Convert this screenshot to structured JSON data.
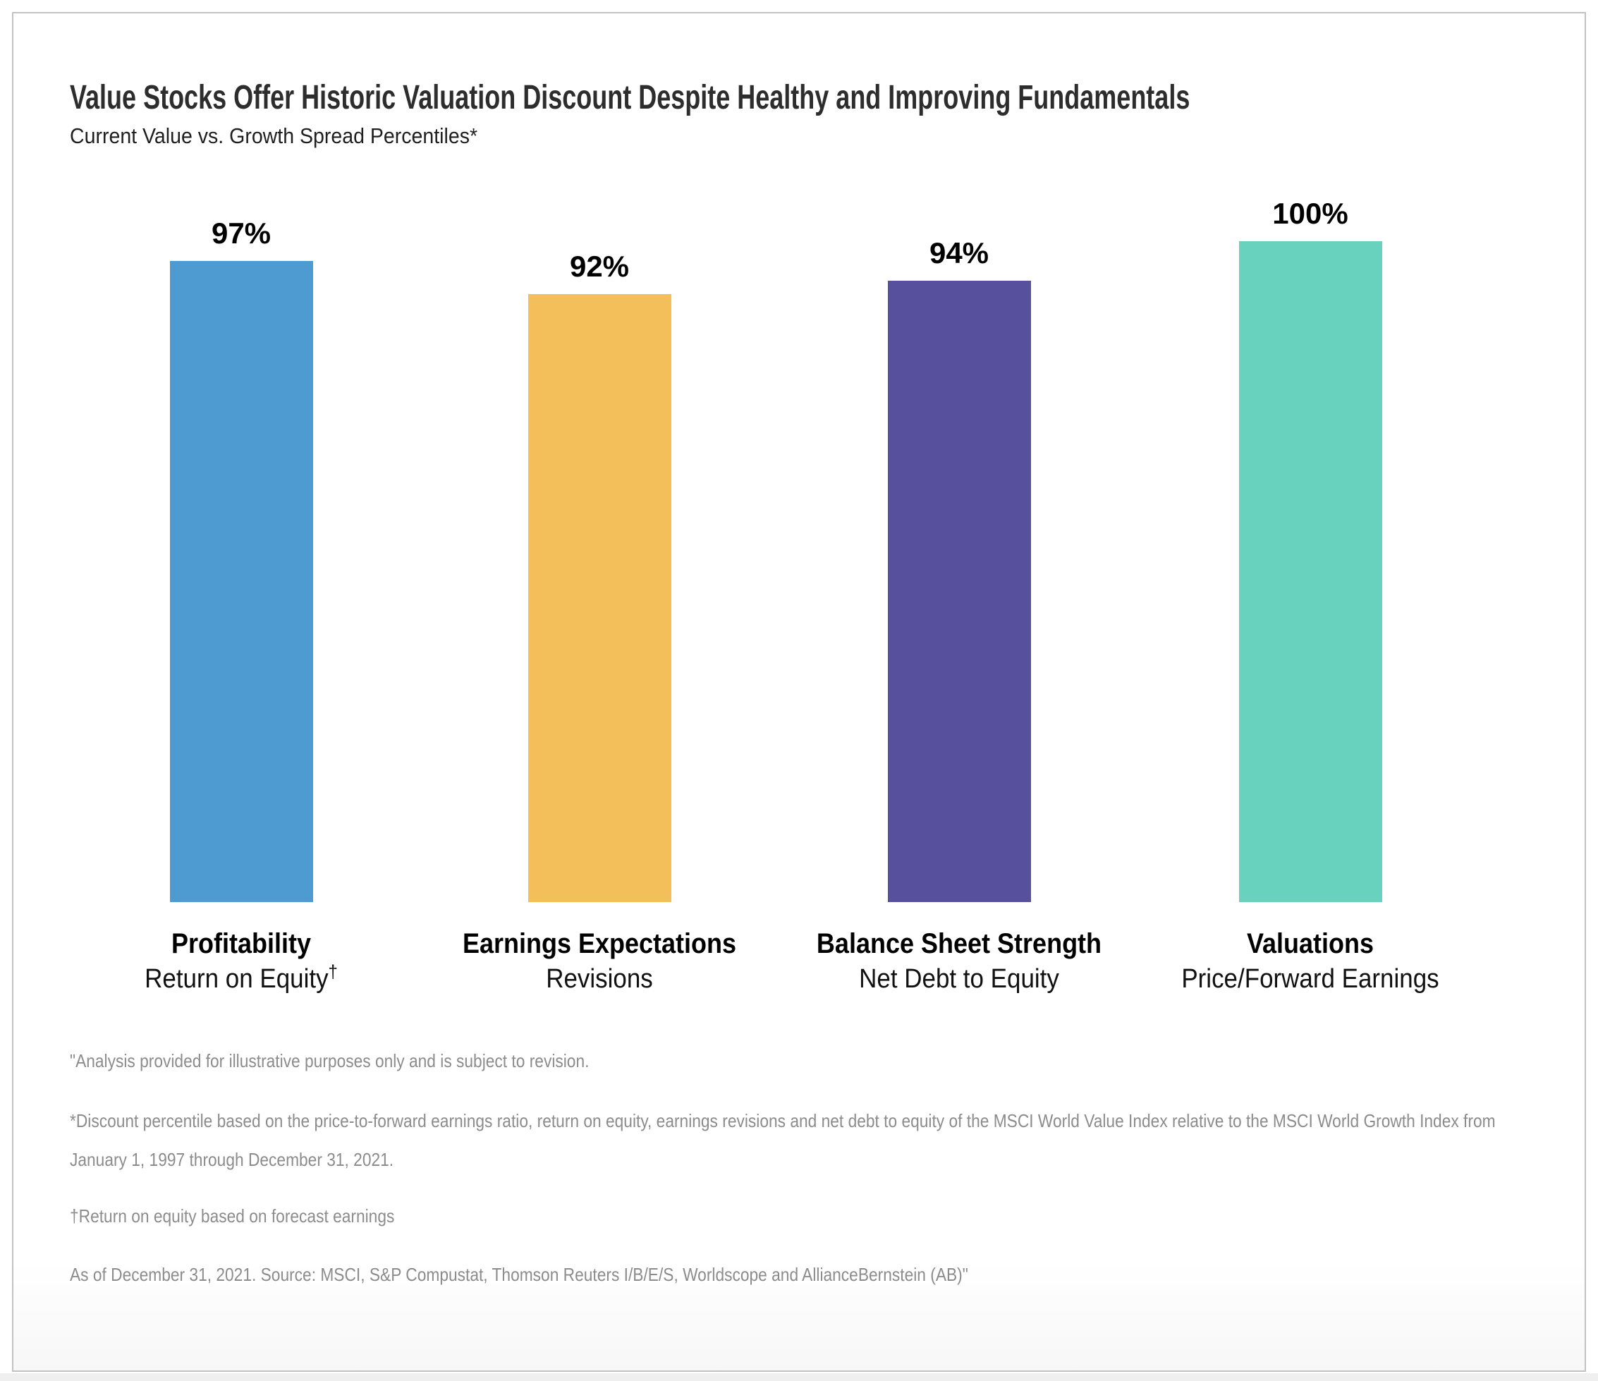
{
  "header": {
    "title": "Value Stocks Offer Historic Valuation Discount Despite Healthy and Improving Fundamentals",
    "subtitle": "Current Value vs. Growth Spread Percentiles*"
  },
  "chart_data": {
    "type": "bar",
    "title": "Value Stocks Offer Historic Valuation Discount Despite Healthy and Improving Fundamentals",
    "subtitle": "Current Value vs. Growth Spread Percentiles*",
    "categories": [
      "Profitability",
      "Earnings Expectations",
      "Balance Sheet Strength",
      "Valuations"
    ],
    "sublabels": [
      "Return on Equity",
      "Revisions",
      "Net Debt to Equity",
      "Price/Forward Earnings"
    ],
    "sup_marks": [
      "†",
      "",
      "",
      ""
    ],
    "values": [
      97,
      92,
      94,
      100
    ],
    "value_labels": [
      "97%",
      "92%",
      "94%",
      "100%"
    ],
    "bar_colors": [
      "#4E9BD2",
      "#F2BF5B",
      "#57509C",
      "#69D2BF"
    ],
    "xlabel": "",
    "ylabel": "",
    "ylim": [
      0,
      100
    ],
    "grid": false,
    "axes_hidden": true,
    "value_label_position": "above-bar",
    "legend": "none"
  },
  "footnotes": [
    "\"Analysis provided for illustrative purposes only and is subject to revision.",
    "*Discount percentile based on the price-to-forward earnings ratio, return on equity, earnings revisions and net debt to equity of the MSCI World Value Index relative to the MSCI World Growth Index from January 1, 1997 through December 31, 2021.",
    "†Return on equity based on forecast earnings",
    "As of December 31, 2021.  Source: MSCI, S&P Compustat, Thomson Reuters I/B/E/S, Worldscope and AllianceBernstein (AB)\""
  ]
}
